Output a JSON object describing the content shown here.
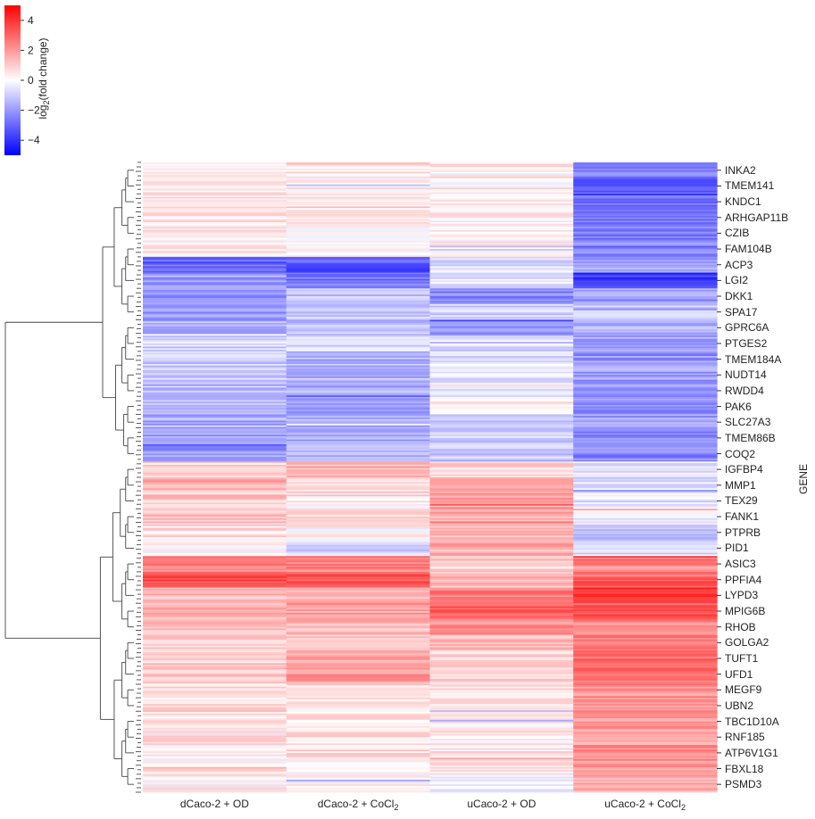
{
  "chart_data": {
    "type": "heatmap",
    "title": "",
    "columns": [
      "dCaco-2 + OD",
      "dCaco-2 + CoCl",
      "uCaco-2 + OD",
      "uCaco-2 + CoCl"
    ],
    "column_subscripts": [
      "",
      "2",
      "",
      "2"
    ],
    "ylabel": "GENE",
    "row_labels": [
      "INKA2",
      "TMEM141",
      "KNDC1",
      "ARHGAP11B",
      "CZIB",
      "FAM104B",
      "ACP3",
      "LGI2",
      "DKK1",
      "SPA17",
      "GPRC6A",
      "PTGES2",
      "TMEM184A",
      "NUDT14",
      "RWDD4",
      "PAK6",
      "SLC27A3",
      "TMEM86B",
      "COQ2",
      "IGFBP4",
      "MMP1",
      "TEX29",
      "FANK1",
      "PTPRB",
      "PID1",
      "ASIC3",
      "PPFIA4",
      "LYPD3",
      "MPIG6B",
      "RHOB",
      "GOLGA2",
      "TUFT1",
      "UFD1",
      "MEGF9",
      "UBN2",
      "TBC1D10A",
      "RNF185",
      "ATP6V1G1",
      "FBXL18",
      "PSMD3"
    ],
    "values": [
      [
        0.4,
        0.4,
        0.4,
        -2.5
      ],
      [
        0.5,
        0.4,
        0.3,
        -3.0
      ],
      [
        0.3,
        0.3,
        0.3,
        -2.6
      ],
      [
        0.4,
        0.5,
        0.3,
        -2.5
      ],
      [
        0.3,
        0.3,
        0.2,
        -2.4
      ],
      [
        0.2,
        0.3,
        0.3,
        -2.4
      ],
      [
        -3.0,
        -3.5,
        -0.6,
        -1.8
      ],
      [
        -2.0,
        -2.6,
        -0.4,
        -4.0
      ],
      [
        -2.2,
        -1.2,
        -2.3,
        -1.4
      ],
      [
        -2.0,
        -1.1,
        -0.9,
        -1.1
      ],
      [
        -1.5,
        -1.3,
        -2.2,
        -1.4
      ],
      [
        -0.9,
        -0.8,
        -0.6,
        -1.8
      ],
      [
        -1.1,
        -1.5,
        -0.6,
        -2.1
      ],
      [
        -0.9,
        -1.5,
        -0.5,
        -1.9
      ],
      [
        -1.4,
        -1.6,
        -0.2,
        -2.0
      ],
      [
        -1.5,
        -1.8,
        0.3,
        -2.2
      ],
      [
        -1.7,
        -1.5,
        -0.8,
        -2.0
      ],
      [
        -1.9,
        -1.6,
        -0.9,
        -2.2
      ],
      [
        -2.0,
        -1.6,
        -1.1,
        -2.4
      ],
      [
        1.1,
        1.3,
        0.8,
        -0.4
      ],
      [
        1.6,
        0.9,
        1.5,
        -0.5
      ],
      [
        1.0,
        0.4,
        2.0,
        -0.3
      ],
      [
        1.2,
        0.6,
        1.6,
        -0.2
      ],
      [
        0.6,
        0.2,
        1.5,
        -1.2
      ],
      [
        0.2,
        -1.0,
        1.6,
        -0.6
      ],
      [
        2.4,
        2.4,
        1.0,
        2.6
      ],
      [
        3.4,
        3.3,
        1.3,
        3.4
      ],
      [
        1.3,
        1.5,
        2.6,
        4.2
      ],
      [
        1.5,
        2.1,
        3.0,
        3.3
      ],
      [
        1.4,
        1.3,
        2.2,
        2.4
      ],
      [
        1.1,
        1.2,
        1.4,
        2.6
      ],
      [
        1.0,
        1.7,
        0.8,
        2.7
      ],
      [
        1.2,
        2.1,
        0.8,
        2.8
      ],
      [
        0.8,
        0.7,
        0.7,
        2.2
      ],
      [
        0.7,
        0.5,
        0.6,
        2.0
      ],
      [
        0.6,
        0.5,
        0.4,
        2.0
      ],
      [
        0.6,
        0.7,
        0.3,
        1.9
      ],
      [
        0.4,
        0.6,
        0.5,
        2.2
      ],
      [
        0.3,
        0.2,
        0.3,
        2.0
      ],
      [
        0.2,
        0.1,
        -0.2,
        1.5
      ]
    ],
    "colorbar": {
      "label_prefix": "log",
      "label_sub": "2",
      "label_suffix": "(fold change)",
      "range": [
        -5,
        5
      ],
      "ticks": [
        4,
        2,
        0,
        -2,
        -4
      ],
      "tick_labels": [
        "4",
        "2",
        "0",
        "−2",
        "−4"
      ],
      "cmap": "bwr",
      "colors": {
        "low": "#0000ff",
        "mid": "#ffffff",
        "high": "#ff0000"
      }
    },
    "dendrogram": "row clustering (left)"
  }
}
